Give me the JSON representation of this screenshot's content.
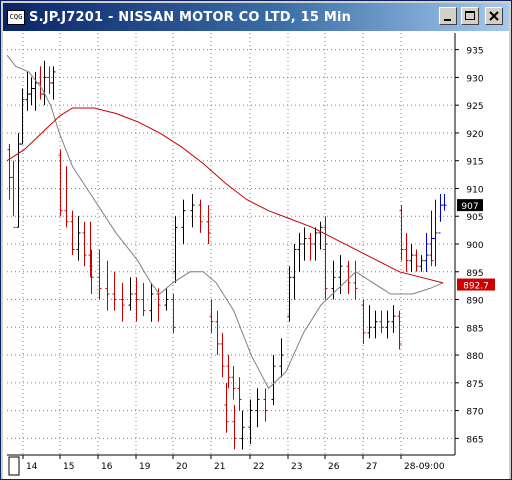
{
  "window": {
    "title": "S.JP.J7201 - NISSAN MOTOR CO LTD, 15 Min",
    "app_icon_label": "CQG",
    "controls": [
      "minimize",
      "maximize",
      "close"
    ]
  },
  "chart_data": {
    "type": "bar",
    "style": "ohlc",
    "y_ticks": [
      865,
      870,
      875,
      880,
      885,
      890,
      895,
      900,
      905,
      910,
      915,
      920,
      925,
      930,
      935
    ],
    "ylim": [
      862,
      938
    ],
    "x_tick_labels": [
      "14",
      "15",
      "16",
      "19",
      "20",
      "21",
      "22",
      "23",
      "26",
      "27",
      "28-09:00"
    ],
    "last_price_label": "907",
    "moving_average_label": "892.7",
    "colors": {
      "background": "#ffffff",
      "grid": "#808080",
      "up_bar": "#000000",
      "down_bar": "#cc0000",
      "current_bar": "#0000cc",
      "slow_ma": "#cc0000",
      "fast_ma": "#808080",
      "last_price_box": "#000000",
      "ma_box": "#cc0000"
    },
    "series": [
      {
        "label": "price",
        "values": [
          {
            "day": "14",
            "bars": [
              [
                917,
                908,
                918,
                912
              ],
              [
                912,
                905,
                915,
                903
              ],
              [
                903,
                903,
                920,
                918
              ],
              [
                918,
                918,
                928,
                926
              ],
              [
                926,
                924,
                931,
                927
              ],
              [
                927,
                925,
                930,
                928
              ],
              [
                928,
                924,
                931,
                929
              ],
              [
                929,
                926,
                932,
                927
              ],
              [
                927,
                925,
                933,
                930
              ],
              [
                930,
                927,
                932,
                929
              ],
              [
                929,
                926,
                932,
                931
              ]
            ]
          },
          {
            "day": "15",
            "bars": [
              [
                916,
                905,
                917,
                906
              ],
              [
                906,
                903,
                914,
                904
              ],
              [
                904,
                898,
                906,
                899
              ],
              [
                899,
                897,
                905,
                902
              ],
              [
                902,
                896,
                904,
                898
              ],
              [
                898,
                894,
                904,
                896
              ]
            ]
          },
          {
            "day": "16",
            "bars": [
              [
                896,
                891,
                899,
                894
              ],
              [
                894,
                890,
                899,
                892
              ],
              [
                892,
                888,
                897,
                891
              ],
              [
                891,
                888,
                895,
                890
              ],
              [
                890,
                886,
                893,
                889
              ],
              [
                889,
                888,
                894,
                891
              ]
            ]
          },
          {
            "day": "19",
            "bars": [
              [
                891,
                886,
                894,
                890
              ],
              [
                890,
                887,
                893,
                888
              ],
              [
                888,
                886,
                893,
                891
              ],
              [
                891,
                886,
                892,
                889
              ],
              [
                889,
                888,
                892,
                890
              ],
              [
                890,
                884,
                891,
                885
              ]
            ]
          },
          {
            "day": "20",
            "bars": [
              [
                895,
                893,
                905,
                903
              ],
              [
                903,
                900,
                908,
                906
              ],
              [
                906,
                903,
                909,
                907
              ],
              [
                907,
                902,
                908,
                904
              ],
              [
                904,
                900,
                907,
                902
              ]
            ]
          },
          {
            "day": "21",
            "bars": [
              [
                887,
                884,
                890,
                886
              ],
              [
                886,
                880,
                888,
                882
              ],
              [
                882,
                876,
                884,
                878
              ],
              [
                878,
                874,
                880,
                876
              ],
              [
                876,
                872,
                878,
                874
              ],
              [
                874,
                870,
                876,
                872
              ]
            ]
          },
          {
            "day": "22",
            "bars": [
              [
                871,
                866,
                875,
                868
              ],
              [
                868,
                863,
                871,
                865
              ],
              [
                865,
                863,
                870,
                867
              ],
              [
                867,
                864,
                872,
                870
              ],
              [
                870,
                867,
                874,
                872
              ],
              [
                872,
                868,
                874,
                870
              ],
              [
                872,
                871,
                880,
                878
              ],
              [
                878,
                876,
                883,
                880
              ]
            ]
          },
          {
            "day": "23",
            "bars": [
              [
                887,
                886,
                896,
                894
              ],
              [
                894,
                890,
                900,
                899
              ],
              [
                899,
                895,
                902,
                900
              ],
              [
                900,
                897,
                903,
                901
              ],
              [
                901,
                897,
                902,
                900
              ],
              [
                900,
                897,
                903,
                902
              ],
              [
                902,
                899,
                904,
                903
              ],
              [
                903,
                898,
                905,
                900
              ]
            ]
          },
          {
            "day": "26",
            "bars": [
              [
                899,
                890,
                901,
                892
              ],
              [
                892,
                890,
                897,
                894
              ],
              [
                894,
                891,
                898,
                896
              ],
              [
                896,
                891,
                897,
                893
              ],
              [
                893,
                890,
                897,
                892
              ]
            ]
          },
          {
            "day": "27",
            "bars": [
              [
                889,
                882,
                890,
                884
              ],
              [
                884,
                883,
                889,
                885
              ],
              [
                885,
                883,
                888,
                886
              ],
              [
                886,
                884,
                888,
                885
              ],
              [
                885,
                883,
                888,
                886
              ],
              [
                886,
                884,
                889,
                887
              ],
              [
                887,
                881,
                888,
                882
              ]
            ]
          },
          {
            "day": "28-09:00",
            "bars": [
              [
                906,
                897,
                907,
                899
              ],
              [
                899,
                895,
                902,
                897
              ],
              [
                897,
                895,
                900,
                898
              ],
              [
                898,
                895,
                899,
                896
              ],
              [
                896,
                895,
                898,
                897
              ],
              [
                897,
                895,
                899,
                898
              ],
              [
                898,
                896,
                901,
                897
              ]
            ]
          },
          {
            "day": "28-09:00",
            "current": true,
            "bars": [
              [
                897,
                895,
                902,
                900
              ],
              [
                900,
                897,
                906,
                901
              ],
              [
                901,
                896,
                908,
                902
              ],
              [
                902,
                904,
                909,
                907
              ],
              [
                907,
                906,
                909,
                907
              ]
            ]
          }
        ]
      },
      {
        "label": "fast_ma",
        "values": [
          [
            0,
            934
          ],
          [
            0.01,
            933
          ],
          [
            0.02,
            932
          ],
          [
            0.05,
            931
          ],
          [
            0.08,
            928
          ],
          [
            0.1,
            925
          ],
          [
            0.12,
            920
          ],
          [
            0.15,
            914
          ],
          [
            0.2,
            908
          ],
          [
            0.25,
            902
          ],
          [
            0.3,
            897
          ],
          [
            0.33,
            893
          ],
          [
            0.35,
            891
          ],
          [
            0.38,
            893
          ],
          [
            0.42,
            895
          ],
          [
            0.45,
            895
          ],
          [
            0.48,
            893
          ],
          [
            0.52,
            888
          ],
          [
            0.56,
            880
          ],
          [
            0.6,
            874
          ],
          [
            0.64,
            877
          ],
          [
            0.68,
            884
          ],
          [
            0.72,
            889
          ],
          [
            0.76,
            892
          ],
          [
            0.8,
            895
          ],
          [
            0.84,
            893
          ],
          [
            0.88,
            891
          ],
          [
            0.9,
            891
          ],
          [
            0.93,
            891
          ],
          [
            0.97,
            892
          ],
          [
            1,
            893
          ]
        ]
      },
      {
        "label": "slow_ma",
        "values": [
          [
            0,
            915
          ],
          [
            0.04,
            917
          ],
          [
            0.08,
            920
          ],
          [
            0.12,
            923
          ],
          [
            0.15,
            924.5
          ],
          [
            0.2,
            924.5
          ],
          [
            0.25,
            923.5
          ],
          [
            0.3,
            922
          ],
          [
            0.35,
            920
          ],
          [
            0.4,
            917.5
          ],
          [
            0.45,
            914.5
          ],
          [
            0.5,
            911
          ],
          [
            0.55,
            908
          ],
          [
            0.6,
            906
          ],
          [
            0.65,
            904.5
          ],
          [
            0.7,
            903
          ],
          [
            0.75,
            901
          ],
          [
            0.8,
            899
          ],
          [
            0.85,
            897
          ],
          [
            0.9,
            895
          ],
          [
            0.95,
            894
          ],
          [
            1,
            893
          ]
        ]
      }
    ]
  }
}
